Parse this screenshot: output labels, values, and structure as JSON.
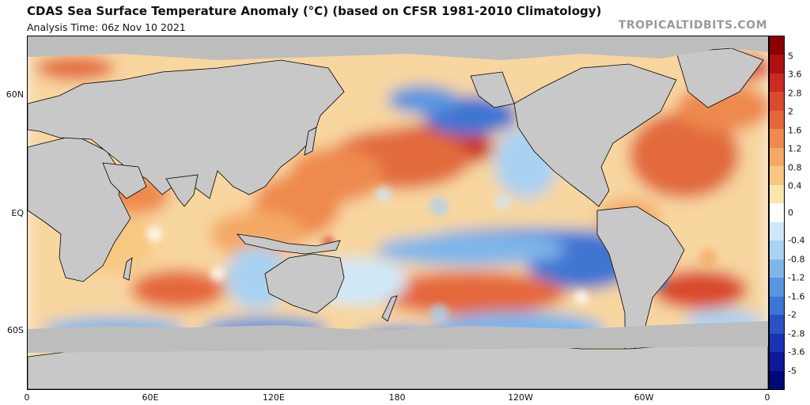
{
  "header": {
    "title": "CDAS Sea Surface Temperature Anomaly (°C) (based on CFSR 1981-2010 Climatology)",
    "analysis_time": "Analysis Time: 06z Nov 10 2021",
    "credit": "TROPICALTIDBITS.COM"
  },
  "map": {
    "land_color": "#c8c8c8",
    "ice_color": "#bdbdbd",
    "coast_color": "#000000",
    "lat_labels": [
      {
        "text": "60N",
        "lat": 60
      },
      {
        "text": "EQ",
        "lat": 0
      },
      {
        "text": "60S",
        "lat": -60
      }
    ],
    "lon_labels": [
      {
        "text": "0",
        "lon": 0
      },
      {
        "text": "60E",
        "lon": 60
      },
      {
        "text": "120E",
        "lon": 120
      },
      {
        "text": "180",
        "lon": 180
      },
      {
        "text": "120W",
        "lon": 240
      },
      {
        "text": "60W",
        "lon": 300
      },
      {
        "text": "0",
        "lon": 360
      }
    ]
  },
  "colorbar": {
    "labels": [
      "5",
      "3.6",
      "2.8",
      "2",
      "1.6",
      "1.2",
      "0.8",
      "0.4",
      "0",
      "-0.4",
      "-0.8",
      "-1.2",
      "-1.6",
      "-2",
      "-2.8",
      "-3.6",
      "-5"
    ],
    "colors": [
      "#8b0000",
      "#b01010",
      "#c82b1f",
      "#d94a2f",
      "#e5673c",
      "#ee8a4d",
      "#f4a965",
      "#f8c883",
      "#fce6b0",
      "#ffffff",
      "#cfe8f8",
      "#a9d2f2",
      "#7fb6ea",
      "#5a96df",
      "#3f75d2",
      "#2a52c4",
      "#1a32b4",
      "#0c1a9a",
      "#00087a"
    ]
  }
}
